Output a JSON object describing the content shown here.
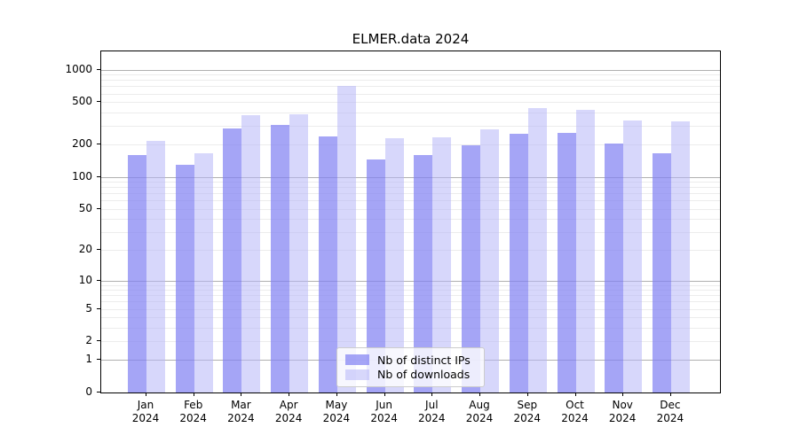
{
  "chart_data": {
    "type": "bar",
    "title": "ELMER.data 2024",
    "categories": [
      "Jan 2024",
      "Feb 2024",
      "Mar 2024",
      "Apr 2024",
      "May 2024",
      "Jun 2024",
      "Jul 2024",
      "Aug 2024",
      "Sep 2024",
      "Oct 2024",
      "Nov 2024",
      "Dec 2024"
    ],
    "series": [
      {
        "name": "Nb of distinct IPs",
        "color": "rgba(130,130,242,0.72)",
        "base_hex": "#8282f2",
        "values": [
          161,
          130,
          286,
          304,
          241,
          146,
          160,
          198,
          254,
          256,
          205,
          166
        ]
      },
      {
        "name": "Nb of downloads",
        "color": "rgba(182,182,248,0.55)",
        "base_hex": "#b6b6f8",
        "values": [
          216,
          165,
          378,
          386,
          700,
          231,
          235,
          281,
          436,
          426,
          334,
          330
        ]
      }
    ],
    "yticks": [
      0,
      1,
      2,
      5,
      10,
      20,
      50,
      100,
      200,
      500,
      1000
    ],
    "y_scale": "log10(1+v)",
    "ylim": [
      0,
      1480
    ],
    "xlabel": "",
    "ylabel": "",
    "grid": "horizontal, major at powers of 10, minor at 2-9 multiples",
    "legend_position": "lower center"
  }
}
